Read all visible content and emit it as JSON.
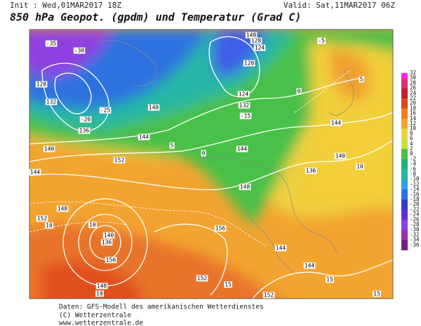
{
  "header": {
    "init": "Init : Wed,01MAR2017 18Z",
    "valid": "Valid: Sat,11MAR2017 06Z",
    "title": "850 hPa Geopot. (gpdm) und Temperatur (Grad C)"
  },
  "colorbar": {
    "labels": [
      "32",
      "30",
      "28",
      "26",
      "24",
      "22",
      "20",
      "18",
      "16",
      "14",
      "12",
      "10",
      "8",
      "6",
      "4",
      "2",
      "0",
      "-2",
      "-4",
      "-6",
      "-8",
      "-10",
      "-12",
      "-14",
      "-16",
      "-18",
      "-20",
      "-22",
      "-24",
      "-26",
      "-28",
      "-30",
      "-32",
      "-34",
      "-36"
    ]
  },
  "map": {
    "labels": [
      "-35",
      "-30",
      "128",
      "132",
      "136",
      "140",
      "144",
      "148",
      "152",
      "10",
      "10",
      "140",
      "136",
      "148",
      "156",
      "152",
      "156",
      "15",
      "144",
      "144",
      "152",
      "5",
      "0",
      "144",
      "148",
      "136",
      "140",
      "144",
      "148",
      "128",
      "124",
      "120",
      "124",
      "132",
      "-15",
      "-5",
      "0",
      "5",
      "148",
      "144",
      "152",
      "-20",
      "-25",
      "10",
      "15",
      "15",
      "10"
    ]
  },
  "footer": {
    "lines": [
      "Daten: GFS-Modell des amerikanischen Wetterdienstes",
      "(C) Wetterzentrale",
      "www.wetterzentrale.de"
    ]
  }
}
